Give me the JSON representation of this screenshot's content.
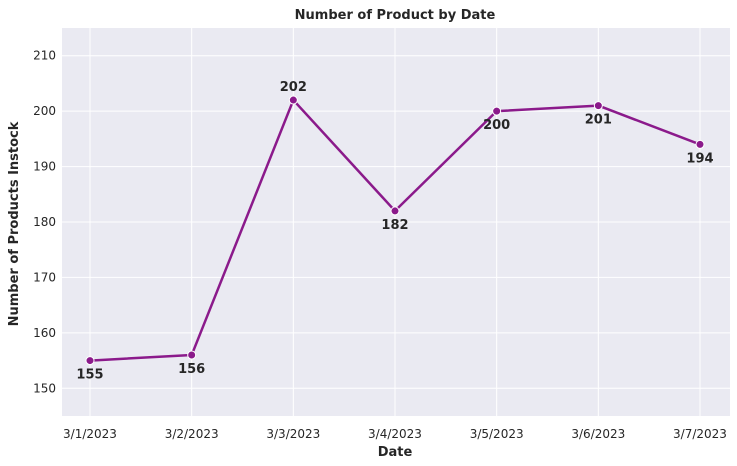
{
  "chart_data": {
    "type": "line",
    "title": "Number of Product by Date",
    "xlabel": "Date",
    "ylabel": "Number of Products Instock",
    "categories": [
      "3/1/2023",
      "3/2/2023",
      "3/3/2023",
      "3/4/2023",
      "3/5/2023",
      "3/6/2023",
      "3/7/2023"
    ],
    "values": [
      155,
      156,
      202,
      182,
      200,
      201,
      194
    ],
    "data_labels": [
      "155",
      "156",
      "202",
      "182",
      "200",
      "201",
      "194"
    ],
    "yticks": [
      150,
      160,
      170,
      180,
      190,
      200,
      210
    ],
    "ylim": [
      145,
      215
    ],
    "grid": true,
    "line_color": "#8B1A8B",
    "background_color": "#EAEAF2",
    "grid_color": "#FFFFFF"
  }
}
